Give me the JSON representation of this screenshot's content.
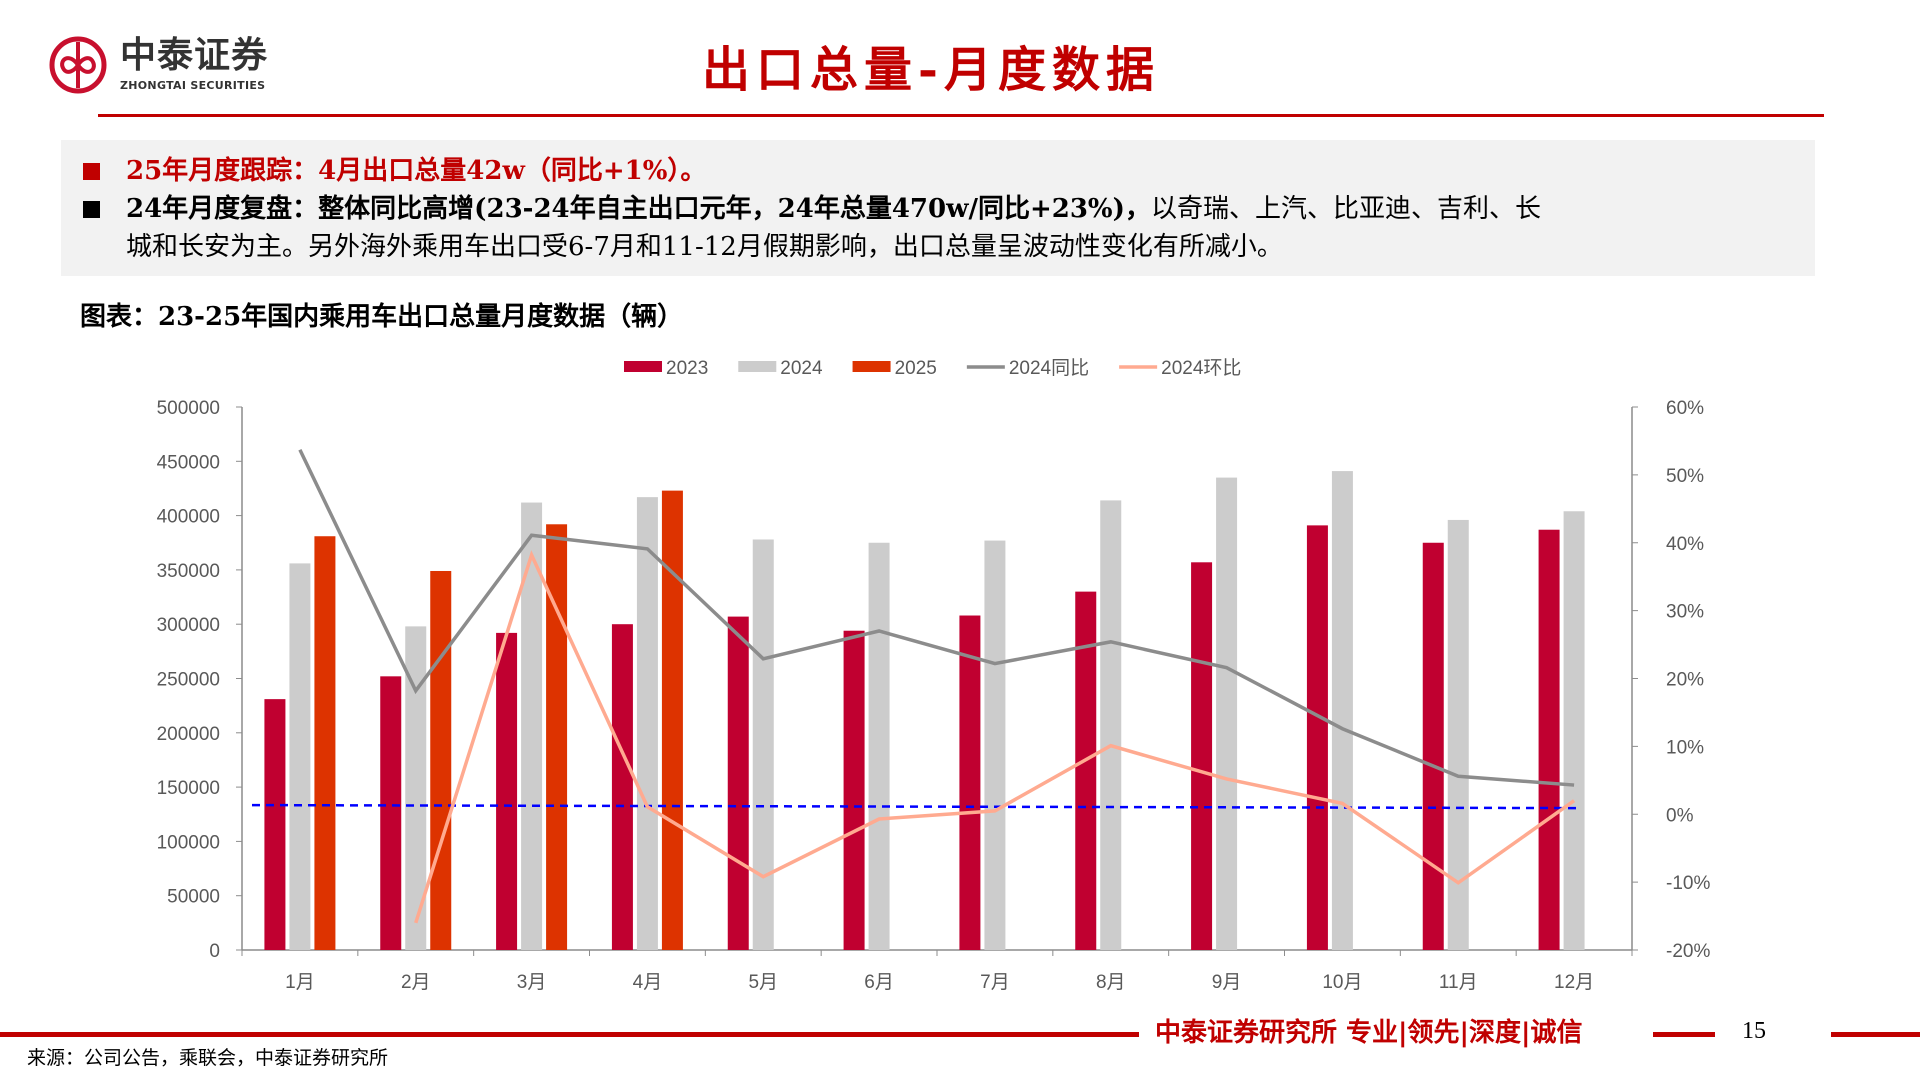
{
  "header": {
    "logo_cn": "中泰证券",
    "logo_en": "ZHONGTAI SECURITIES",
    "title": "出口总量-月度数据"
  },
  "summary": {
    "line1": "25年月度跟踪：4月出口总量42w（同比+1%）。",
    "line2_bold": "24年月度复盘：整体同比高增(23-24年自主出口元年，24年总量470w/同比+23%)，",
    "line2_rest": "以奇瑞、上汽、比亚迪、吉利、长",
    "line3": "城和长安为主。另外海外乘用车出口受6-7月和11-12月假期影响，出口总量呈波动性变化有所减小。"
  },
  "chart_caption": "图表：23-25年国内乘用车出口总量月度数据（辆）",
  "chart_data": {
    "type": "bar",
    "categories": [
      "1月",
      "2月",
      "3月",
      "4月",
      "5月",
      "6月",
      "7月",
      "8月",
      "9月",
      "10月",
      "11月",
      "12月"
    ],
    "series": [
      {
        "name": "2023",
        "type": "bar",
        "axis": "left",
        "color": "#c00030",
        "values": [
          231000,
          252000,
          292000,
          300000,
          307000,
          294000,
          308000,
          330000,
          357000,
          391000,
          375000,
          387000
        ]
      },
      {
        "name": "2024",
        "type": "bar",
        "axis": "left",
        "color": "#cccccc",
        "values": [
          356000,
          298000,
          412000,
          417000,
          378000,
          375000,
          377000,
          414000,
          435000,
          441000,
          396000,
          404000
        ]
      },
      {
        "name": "2025",
        "type": "bar",
        "axis": "left",
        "color": "#dd3300",
        "values": [
          381000,
          349000,
          392000,
          423000,
          null,
          null,
          null,
          null,
          null,
          null,
          null,
          null
        ]
      },
      {
        "name": "2024同比",
        "type": "line",
        "axis": "right",
        "color": "#8c8c8c",
        "values": [
          53.7,
          18.2,
          41.1,
          39.1,
          22.9,
          27.0,
          22.2,
          25.4,
          21.6,
          12.6,
          5.6,
          4.3
        ]
      },
      {
        "name": "2024环比",
        "type": "line",
        "axis": "right",
        "color": "#ffaa90",
        "values": [
          null,
          -16.0,
          38.2,
          1.1,
          -9.2,
          -0.7,
          0.5,
          10.1,
          5.2,
          1.6,
          -10.1,
          2.0
        ]
      }
    ],
    "y_left": {
      "range": [
        0,
        500000
      ],
      "ticks": [
        "0",
        "50000",
        "100000",
        "150000",
        "200000",
        "250000",
        "300000",
        "350000",
        "400000",
        "450000",
        "500000"
      ]
    },
    "y_right": {
      "range": [
        -20,
        60
      ],
      "ticks": [
        "-20%",
        "-10%",
        "0%",
        "10%",
        "20%",
        "30%",
        "40%",
        "50%",
        "60%"
      ]
    },
    "reference_line": {
      "axis": "right",
      "value": 1.2,
      "style": "dashed",
      "color": "#0000ff"
    },
    "legend": "top",
    "grid": false
  },
  "footer": {
    "brand": "中泰证券研究所 专业|领先|深度|诚信",
    "page": "15",
    "source": "来源：公司公告，乘联会，中泰证券研究所"
  },
  "colors": {
    "brand_red": "#c00000",
    "summary_bg": "#f2f2f2"
  }
}
